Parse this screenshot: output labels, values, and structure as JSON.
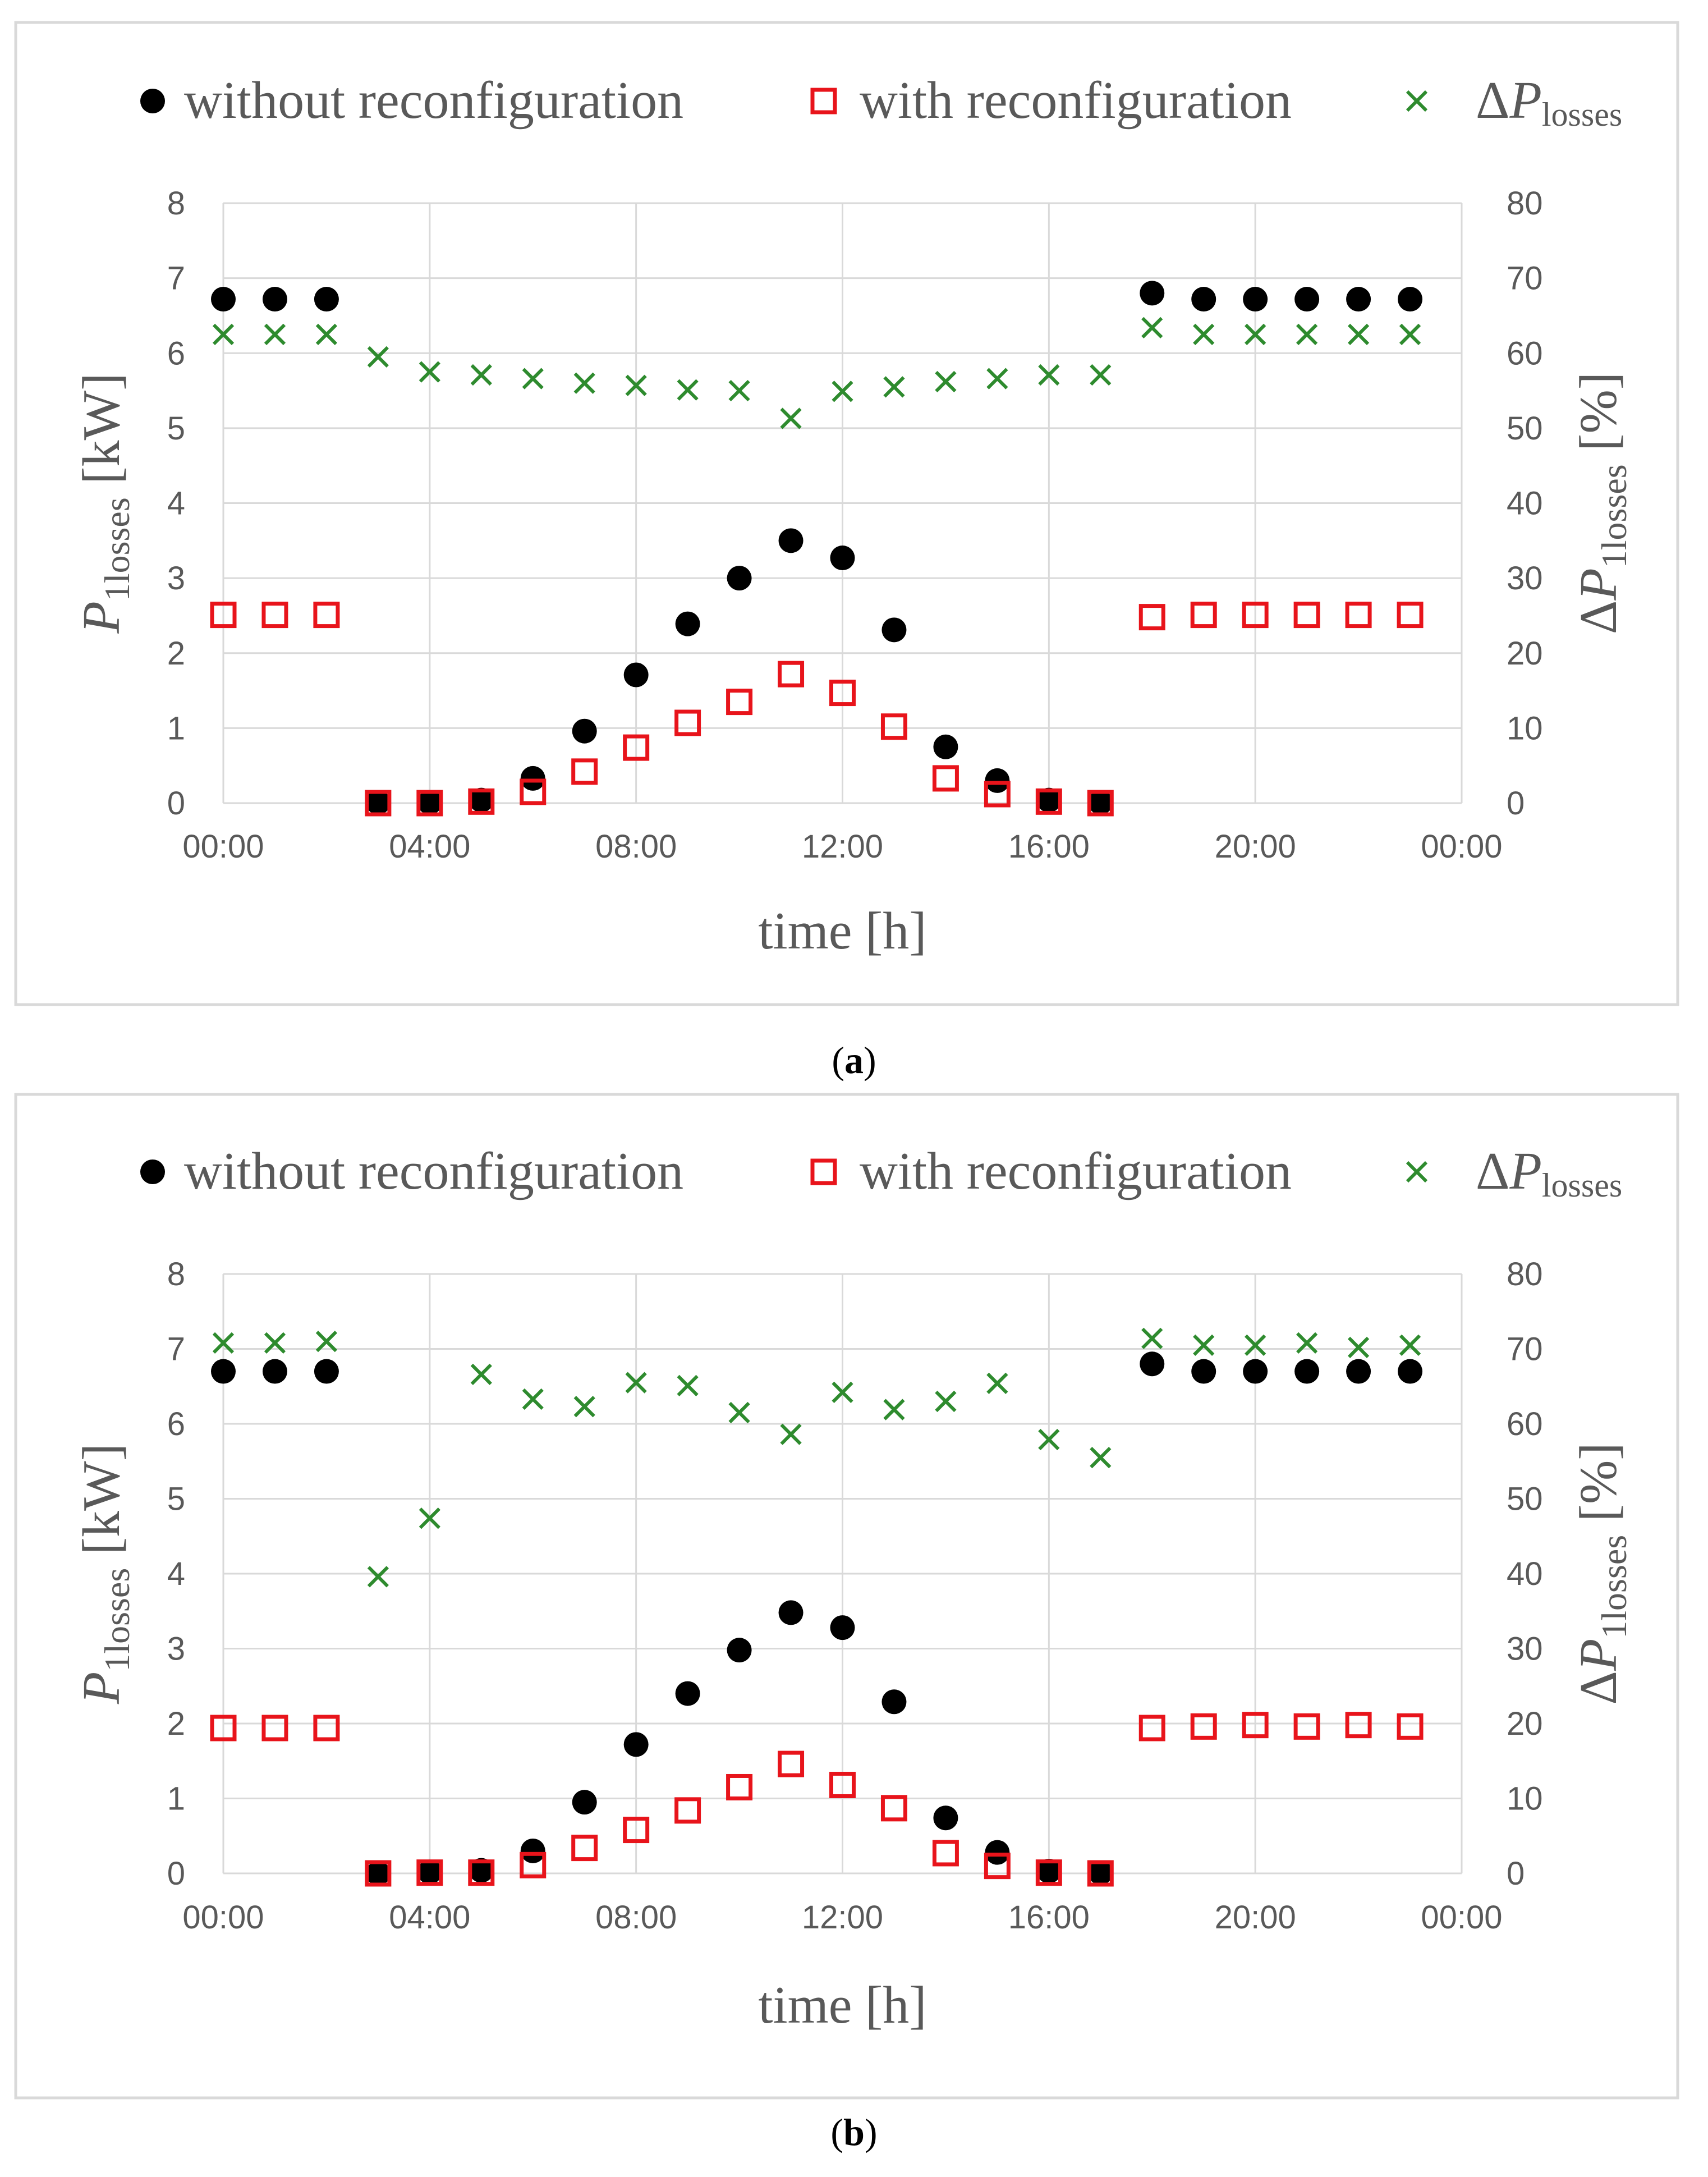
{
  "colors": {
    "without": "#000000",
    "with": "#e8141b",
    "delta": "#2e8b2e",
    "grid": "#d9d9d9",
    "frame": "#d9d9d9",
    "text": "#595959"
  },
  "legend": {
    "without": "without reconfiguration",
    "with": "with reconfiguration",
    "delta_prefix": "ΔP",
    "delta_sub": "losses"
  },
  "axes": {
    "xlabel": "time [h]",
    "ylabel_left_main": "P",
    "ylabel_left_sub": "1losses",
    "ylabel_left_unit": " [kW]",
    "ylabel_right_main": "ΔP",
    "ylabel_right_sub": "1losses",
    "ylabel_right_unit": " [%]"
  },
  "chart_data": [
    {
      "type": "scatter",
      "caption_letter": "a",
      "x": [
        0,
        1,
        2,
        3,
        4,
        5,
        6,
        7,
        8,
        9,
        10,
        11,
        12,
        13,
        14,
        15,
        16,
        17,
        18,
        19,
        20,
        21,
        22,
        23
      ],
      "xlim": [
        0,
        24
      ],
      "xticks": [
        0,
        4,
        8,
        12,
        16,
        20,
        24
      ],
      "xtick_labels": [
        "00:00",
        "04:00",
        "08:00",
        "12:00",
        "16:00",
        "20:00",
        "00:00"
      ],
      "ylim": [
        0,
        8
      ],
      "yticks": [
        0,
        1,
        2,
        3,
        4,
        5,
        6,
        7,
        8
      ],
      "y2lim": [
        0,
        80
      ],
      "y2ticks": [
        0,
        10,
        20,
        30,
        40,
        50,
        60,
        70,
        80
      ],
      "grid": true,
      "legend_position": "top",
      "series": [
        {
          "name": "without reconfiguration",
          "axis": "left",
          "marker": "circle",
          "values": [
            6.72,
            6.72,
            6.72,
            0.01,
            0.01,
            0.04,
            0.33,
            0.96,
            1.71,
            2.39,
            3.0,
            3.5,
            3.27,
            2.31,
            0.75,
            0.3,
            0.04,
            0.01,
            6.8,
            6.72,
            6.72,
            6.72,
            6.72,
            6.72
          ]
        },
        {
          "name": "with reconfiguration",
          "axis": "left",
          "marker": "square",
          "values": [
            2.51,
            2.51,
            2.51,
            0.0,
            0.0,
            0.02,
            0.15,
            0.42,
            0.74,
            1.07,
            1.35,
            1.72,
            1.47,
            1.02,
            0.33,
            0.12,
            0.02,
            0.0,
            2.48,
            2.51,
            2.51,
            2.51,
            2.51,
            2.51
          ]
        },
        {
          "name": "ΔP losses",
          "axis": "right",
          "marker": "x",
          "values": [
            62.5,
            62.5,
            62.5,
            59.5,
            57.5,
            57.1,
            56.6,
            56.0,
            55.7,
            55.1,
            55.0,
            51.3,
            54.9,
            55.5,
            56.2,
            56.6,
            57.1,
            57.1,
            63.4,
            62.5,
            62.5,
            62.5,
            62.5,
            62.5
          ]
        }
      ]
    },
    {
      "type": "scatter",
      "caption_letter": "b",
      "x": [
        0,
        1,
        2,
        3,
        4,
        5,
        6,
        7,
        8,
        9,
        10,
        11,
        12,
        13,
        14,
        15,
        16,
        17,
        18,
        19,
        20,
        21,
        22,
        23
      ],
      "xlim": [
        0,
        24
      ],
      "xticks": [
        0,
        4,
        8,
        12,
        16,
        20,
        24
      ],
      "xtick_labels": [
        "00:00",
        "04:00",
        "08:00",
        "12:00",
        "16:00",
        "20:00",
        "00:00"
      ],
      "ylim": [
        0,
        8
      ],
      "yticks": [
        0,
        1,
        2,
        3,
        4,
        5,
        6,
        7,
        8
      ],
      "y2lim": [
        0,
        80
      ],
      "y2ticks": [
        0,
        10,
        20,
        30,
        40,
        50,
        60,
        70,
        80
      ],
      "grid": true,
      "legend_position": "top",
      "series": [
        {
          "name": "without reconfiguration",
          "axis": "left",
          "marker": "circle",
          "values": [
            6.7,
            6.7,
            6.7,
            0.0,
            0.02,
            0.04,
            0.3,
            0.95,
            1.72,
            2.4,
            2.98,
            3.48,
            3.28,
            2.29,
            0.74,
            0.28,
            0.03,
            0.01,
            6.8,
            6.7,
            6.7,
            6.7,
            6.7,
            6.7
          ]
        },
        {
          "name": "with reconfiguration",
          "axis": "left",
          "marker": "square",
          "values": [
            1.94,
            1.94,
            1.94,
            0.0,
            0.01,
            0.01,
            0.11,
            0.34,
            0.58,
            0.84,
            1.15,
            1.46,
            1.18,
            0.87,
            0.27,
            0.1,
            0.01,
            0.0,
            1.94,
            1.96,
            1.98,
            1.96,
            1.98,
            1.96
          ]
        },
        {
          "name": "ΔP losses",
          "axis": "right",
          "marker": "x",
          "values": [
            70.8,
            70.8,
            71.0,
            39.6,
            47.4,
            66.6,
            63.3,
            62.3,
            65.5,
            65.1,
            61.5,
            58.6,
            64.2,
            61.9,
            63.0,
            65.4,
            57.9,
            55.5,
            71.4,
            70.5,
            70.5,
            70.8,
            70.2,
            70.5
          ]
        }
      ]
    }
  ]
}
